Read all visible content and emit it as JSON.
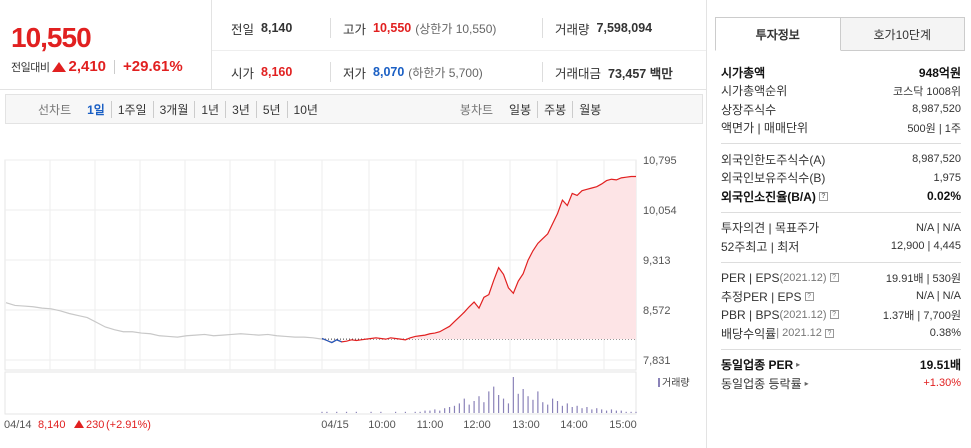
{
  "quote": {
    "now_price": "10,550",
    "diff_label": "전일대비",
    "diff_value": "2,410",
    "diff_rate": "+29.61%"
  },
  "stats": {
    "prev_close_label": "전일",
    "prev_close": "8,140",
    "high_label": "고가",
    "high": "10,550",
    "upper_limit": "(상한가 10,550)",
    "volume_label": "거래량",
    "volume": "7,598,094",
    "open_label": "시가",
    "open": "8,160",
    "low_label": "저가",
    "low": "8,070",
    "lower_limit": "(하한가 5,700)",
    "trade_value_label": "거래대금",
    "trade_value": "73,457 백만"
  },
  "period_bar": {
    "line_title": "선차트",
    "line_items": [
      "1일",
      "1주일",
      "3개월",
      "1년",
      "3년",
      "5년",
      "10년"
    ],
    "line_active": "1일",
    "candle_title": "봉차트",
    "candle_items": [
      "일봉",
      "주봉",
      "월봉"
    ]
  },
  "colors": {
    "up": "#e12020",
    "down": "#1a5fc4",
    "area_fill": "#fde4e6",
    "prev_line": "#c8c8c8",
    "volume": "#8a82b8"
  },
  "chart_data": {
    "type": "line",
    "y_ticks": [
      "10,795",
      "10,054",
      "9,313",
      "8,572",
      "7,831"
    ],
    "ylim": [
      7831,
      10795
    ],
    "x_ticks": [
      "04/15",
      "10:00",
      "11:00",
      "12:00",
      "13:00",
      "14:00",
      "15:00"
    ],
    "volume_label": "거래량",
    "baseline": 8140,
    "prev_day_label": "04/14",
    "prev_day_close": "8,140",
    "prev_day_change": "230",
    "prev_day_rate": "(+2.91%)",
    "prev_day_series": [
      8680,
      8640,
      8630,
      8620,
      8600,
      8590,
      8560,
      8520,
      8490,
      8460,
      8390,
      8320,
      8280,
      8250,
      8250,
      8230,
      8220,
      8190,
      8180,
      8170,
      8190,
      8200,
      8210,
      8190,
      8200,
      8210,
      8220,
      8210,
      8200,
      8210,
      8190,
      8180,
      8170,
      8170,
      8160,
      8140
    ],
    "today_series": [
      8150,
      8120,
      8090,
      8130,
      8100,
      8110,
      8130,
      8120,
      8130,
      8140,
      8150,
      8160,
      8150,
      8140,
      8160,
      8150,
      8140,
      8130,
      8160,
      8180,
      8190,
      8200,
      8220,
      8230,
      8250,
      8290,
      8330,
      8400,
      8470,
      8540,
      8620,
      8690,
      8600,
      8760,
      8800,
      9010,
      9200,
      9100,
      8900,
      8820,
      9000,
      9110,
      9310,
      9450,
      9560,
      9630,
      9700,
      9850,
      10000,
      10200,
      10120,
      10300,
      10270,
      10340,
      10360,
      10380,
      10400,
      10440,
      10490,
      10510,
      10500,
      10530,
      10540,
      10550,
      10550
    ],
    "volume": [
      1,
      1,
      0,
      1,
      0,
      1,
      0,
      1,
      0,
      0,
      1,
      0,
      1,
      0,
      0,
      1,
      0,
      1,
      0,
      1,
      1,
      2,
      2,
      3,
      2,
      4,
      5,
      6,
      8,
      12,
      7,
      10,
      14,
      9,
      18,
      22,
      15,
      12,
      8,
      30,
      16,
      20,
      14,
      11,
      18,
      9,
      7,
      12,
      10,
      6,
      8,
      5,
      6,
      4,
      5,
      3,
      4,
      3,
      2,
      3,
      2,
      2,
      1,
      1,
      1
    ]
  },
  "tabs": [
    "투자정보",
    "호가10단계"
  ],
  "invest_info": {
    "s1": [
      {
        "k": "시가총액",
        "v": "948억원"
      },
      {
        "k": "시가총액순위",
        "v": "코스닥 1008위"
      },
      {
        "k": "상장주식수",
        "v": "8,987,520"
      },
      {
        "k": "액면가 | 매매단위",
        "v": "500원 | 1주"
      }
    ],
    "s2": [
      {
        "k": "외국인한도주식수(A)",
        "v": "8,987,520"
      },
      {
        "k": "외국인보유주식수(B)",
        "v": "1,975"
      },
      {
        "k": "외국인소진율(B/A)",
        "v": "0.02%"
      }
    ],
    "s3": [
      {
        "k": "투자의견 | 목표주가",
        "v": "N/A | N/A"
      },
      {
        "k": "52주최고 | 최저",
        "v": "12,900 | 4,445"
      }
    ],
    "s4": [
      {
        "k": "PER | EPS",
        "sm": "(2021.12)",
        "v": "19.91배 | 530원"
      },
      {
        "k": "추정PER | EPS",
        "v": "N/A | N/A"
      },
      {
        "k": "PBR | BPS",
        "sm": "(2021.12)",
        "v": "1.37배 | 7,700원"
      },
      {
        "k": "배당수익률",
        "sm": "| 2021.12",
        "v": "0.38%"
      }
    ],
    "s5": [
      {
        "k": "동일업종 PER",
        "v": "19.51배"
      },
      {
        "k": "동일업종 등락률",
        "v": "+1.30%"
      }
    ]
  }
}
